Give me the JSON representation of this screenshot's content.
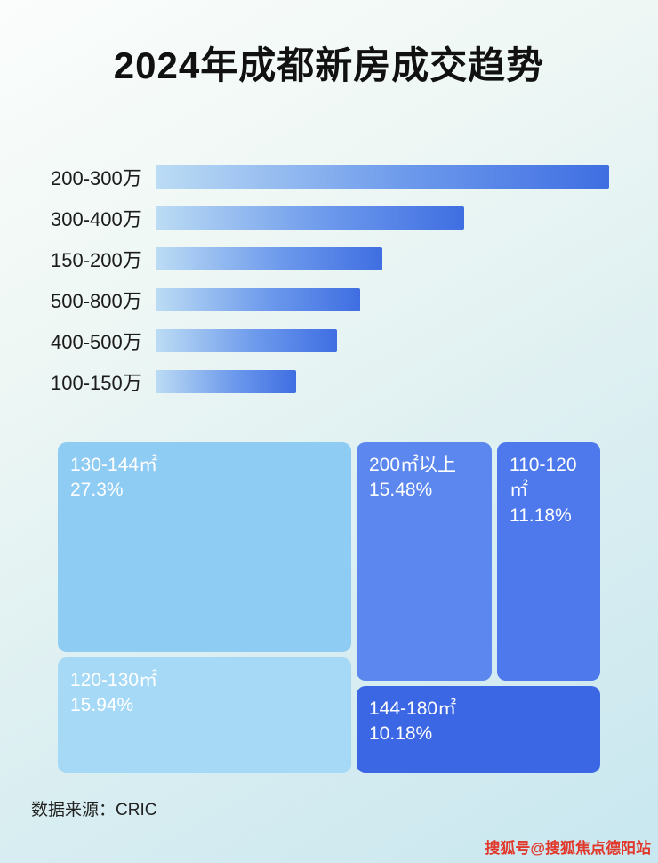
{
  "page": {
    "title": "2024年成都新房成交趋势",
    "source_label": "数据来源：CRIC",
    "watermark": "搜狐号@搜狐焦点德阳站"
  },
  "colors": {
    "background_top": "#fbfdfc",
    "background_bottom": "#c8e7f0",
    "bar_gradient_start": "#bcdcf4",
    "bar_gradient_end": "#3f6ee2",
    "title_text": "#111111",
    "watermark_red": "#e2372b"
  },
  "chart_data": [
    {
      "type": "bar",
      "orientation": "horizontal",
      "title": "2024年成都新房成交趋势",
      "categories": [
        "200-300万",
        "300-400万",
        "150-200万",
        "500-800万",
        "400-500万",
        "100-150万"
      ],
      "values": [
        100,
        68,
        50,
        45,
        40,
        31
      ],
      "value_note": "bar lengths estimated as percent of longest bar; no numeric labels shown in image",
      "xlabel": "",
      "ylabel": "",
      "grid": false,
      "legend": false
    },
    {
      "type": "treemap",
      "items": [
        {
          "label": "130-144㎡",
          "value": 27.3,
          "display": "27.3%",
          "color": "#8fccf4"
        },
        {
          "label": "200㎡以上",
          "value": 15.48,
          "display": "15.48%",
          "color": "#5b87ee"
        },
        {
          "label": "110-120㎡",
          "value": 11.18,
          "display": "11.18%",
          "color": "#4d79ec"
        },
        {
          "label": "120-130㎡",
          "value": 15.94,
          "display": "15.94%",
          "color": "#a6d9f6"
        },
        {
          "label": "144-180㎡",
          "value": 10.18,
          "display": "10.18%",
          "color": "#3c67e4"
        }
      ],
      "legend": false
    }
  ]
}
